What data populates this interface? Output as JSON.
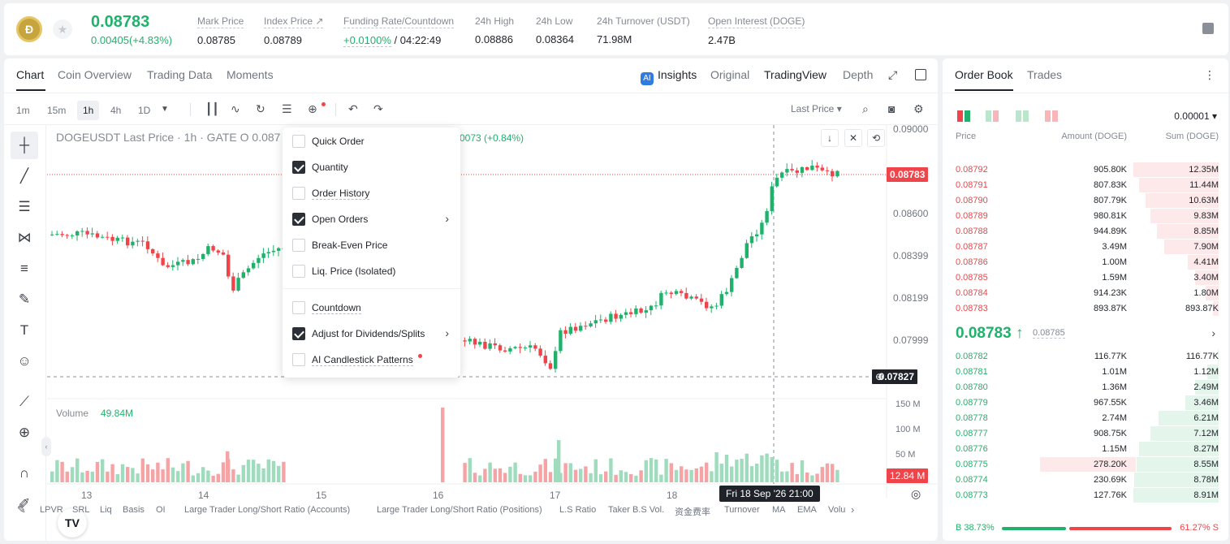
{
  "header": {
    "logo_text": "Ð",
    "last_price": "0.08783",
    "price_change": "0.00405(+4.83%)",
    "stats": [
      {
        "label": "Mark Price",
        "value": "0.08785"
      },
      {
        "label": "Index Price ↗",
        "value": "0.08789"
      },
      {
        "label": "Funding Rate/Countdown",
        "value": "+0.0100%",
        "value2": " / 04:22:49"
      },
      {
        "label": "24h High",
        "value": "0.08886"
      },
      {
        "label": "24h Low",
        "value": "0.08364"
      },
      {
        "label": "24h Turnover (USDT)",
        "value": "71.98M"
      },
      {
        "label": "Open Interest (DOGE)",
        "value": "2.47B"
      }
    ]
  },
  "main_tabs": [
    "Chart",
    "Coin Overview",
    "Trading Data",
    "Moments"
  ],
  "view_tabs": {
    "insights": "Insights",
    "original": "Original",
    "tradingview": "TradingView",
    "depth": "Depth"
  },
  "toolbar": {
    "timeframes": [
      "1m",
      "15m",
      "1h",
      "4h",
      "1D"
    ],
    "active_timeframe": "1h",
    "price_type": "Last Price"
  },
  "chart": {
    "legend": "DOGEUSDT Last Price · 1h · GATE  O 0.087",
    "legend_tail": "0073 (+0.84%)",
    "price_axis": [
      "0.09000",
      "0.08600",
      "0.08399",
      "0.08199",
      "0.07999"
    ],
    "current_price_tag": "0.08783",
    "cursor_price_tag": "0.07827",
    "volume_label": "Volume",
    "volume_value": "49.84M",
    "volume_axis": [
      "150 M",
      "100 M",
      "50 M"
    ],
    "volume_tag": "12.84 M",
    "x_axis": [
      "13",
      "14",
      "15",
      "16",
      "17",
      "18"
    ],
    "time_tooltip": "Fri 18 Sep '26   21:00",
    "tv_logo": "TV",
    "indicators": [
      "LPVR",
      "SRL",
      "Liq",
      "Basis",
      "OI",
      "Large Trader Long/Short Ratio (Accounts)",
      "Large Trader Long/Short Ratio (Positions)",
      "L.S Ratio",
      "Taker B.S Vol.",
      "资金费率",
      "Turnover",
      "MA",
      "EMA",
      "Volu"
    ]
  },
  "dropdown": {
    "items": [
      {
        "label": "Quick Order",
        "checked": false,
        "arrow": false,
        "dash": false
      },
      {
        "label": "Quantity",
        "checked": true,
        "arrow": false,
        "dash": false
      },
      {
        "label": "Order History",
        "checked": false,
        "arrow": false,
        "dash": true
      },
      {
        "label": "Open Orders",
        "checked": true,
        "arrow": true,
        "dash": false
      },
      {
        "label": "Break-Even Price",
        "checked": false,
        "arrow": false,
        "dash": false
      },
      {
        "label": "Liq. Price (Isolated)",
        "checked": false,
        "arrow": false,
        "dash": false
      },
      {
        "label": "Countdown",
        "checked": false,
        "arrow": false,
        "dash": true
      },
      {
        "label": "Adjust for Dividends/Splits",
        "checked": true,
        "arrow": true,
        "dash": false
      },
      {
        "label": "AI Candlestick Patterns",
        "checked": false,
        "arrow": false,
        "dash": true
      }
    ]
  },
  "orderbook": {
    "tabs": [
      "Order Book",
      "Trades"
    ],
    "precision": "0.00001 ▾",
    "headers": {
      "price": "Price",
      "amount": "Amount (DOGE)",
      "sum": "Sum (DOGE)"
    },
    "asks": [
      {
        "price": "0.08792",
        "amount": "905.80K",
        "sum": "12.35M",
        "depth": 1.0
      },
      {
        "price": "0.08791",
        "amount": "807.83K",
        "sum": "11.44M",
        "depth": 0.93
      },
      {
        "price": "0.08790",
        "amount": "807.79K",
        "sum": "10.63M",
        "depth": 0.86
      },
      {
        "price": "0.08789",
        "amount": "980.81K",
        "sum": "9.83M",
        "depth": 0.8
      },
      {
        "price": "0.08788",
        "amount": "944.89K",
        "sum": "8.85M",
        "depth": 0.72
      },
      {
        "price": "0.08787",
        "amount": "3.49M",
        "sum": "7.90M",
        "depth": 0.64
      },
      {
        "price": "0.08786",
        "amount": "1.00M",
        "sum": "4.41M",
        "depth": 0.36
      },
      {
        "price": "0.08785",
        "amount": "1.59M",
        "sum": "3.40M",
        "depth": 0.28
      },
      {
        "price": "0.08784",
        "amount": "914.23K",
        "sum": "1.80M",
        "depth": 0.15
      },
      {
        "price": "0.08783",
        "amount": "893.87K",
        "sum": "893.87K",
        "depth": 0.07
      }
    ],
    "mid_price": "0.08783 ↑",
    "mid_mark": "0.08785",
    "bids": [
      {
        "price": "0.08782",
        "amount": "116.77K",
        "sum": "116.77K",
        "depth": 0.01
      },
      {
        "price": "0.08781",
        "amount": "1.01M",
        "sum": "1.12M",
        "depth": 0.13
      },
      {
        "price": "0.08780",
        "amount": "1.36M",
        "sum": "2.49M",
        "depth": 0.28
      },
      {
        "price": "0.08779",
        "amount": "967.55K",
        "sum": "3.46M",
        "depth": 0.39
      },
      {
        "price": "0.08778",
        "amount": "2.74M",
        "sum": "6.21M",
        "depth": 0.7
      },
      {
        "price": "0.08777",
        "amount": "908.75K",
        "sum": "7.12M",
        "depth": 0.8
      },
      {
        "price": "0.08776",
        "amount": "1.15M",
        "sum": "8.27M",
        "depth": 0.93
      },
      {
        "price": "0.08775",
        "amount": "278.20K",
        "sum": "8.55M",
        "depth": 0.96
      },
      {
        "price": "0.08774",
        "amount": "230.69K",
        "sum": "8.78M",
        "depth": 0.99
      },
      {
        "price": "0.08773",
        "amount": "127.76K",
        "sum": "8.91M",
        "depth": 1.0
      }
    ],
    "buy_ratio": "B 38.73%",
    "sell_ratio": "61.27% S",
    "buy_ratio_value": 38.73
  },
  "colors": {
    "up": "#20b26c",
    "down": "#ef454a"
  }
}
